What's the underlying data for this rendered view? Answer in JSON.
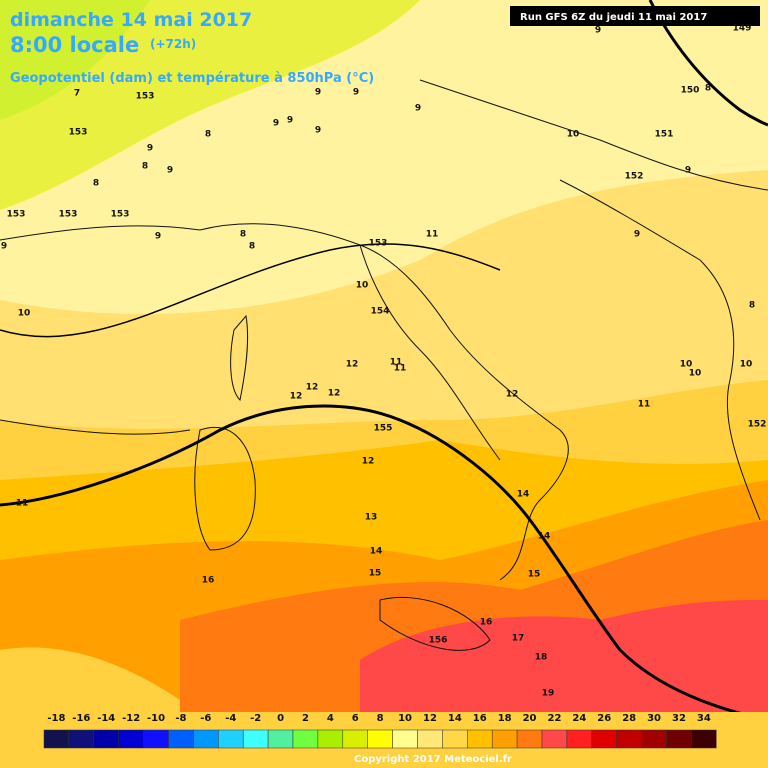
{
  "header": {
    "date": "dimanche 14 mai 2017",
    "time": "8:00 locale",
    "lead": "(+72h)",
    "subtitle": "Geopotentiel (dam) et température à 850hPa (°C)",
    "run": "Run GFS 6Z du jeudi 11 mai 2017"
  },
  "contour_labels": [
    9,
    149,
    150,
    8,
    7,
    153,
    153,
    9,
    8,
    9,
    8,
    153,
    153,
    153,
    9,
    8,
    8,
    9,
    9,
    9,
    9,
    9,
    9,
    8,
    9,
    10,
    151,
    152,
    9,
    9,
    11,
    153,
    10,
    154,
    10,
    8,
    10,
    10,
    10,
    12,
    11,
    11,
    12,
    12,
    12,
    12,
    11,
    152,
    155,
    12,
    11,
    14,
    13,
    14,
    14,
    15,
    15,
    16,
    16,
    17,
    156,
    18,
    19
  ],
  "scale": {
    "values": [
      -18,
      -16,
      -14,
      -12,
      -10,
      -8,
      -6,
      -4,
      -2,
      0,
      2,
      4,
      6,
      8,
      10,
      12,
      14,
      16,
      18,
      20,
      22,
      24,
      26,
      28,
      30,
      32,
      34
    ],
    "colors": [
      "#12124e",
      "#10107a",
      "#0000a8",
      "#0000d0",
      "#1010ff",
      "#0060ff",
      "#0098ff",
      "#20d0ff",
      "#40ffff",
      "#50f0a0",
      "#70ff40",
      "#a8f000",
      "#d8f000",
      "#ffff00",
      "#ffff90",
      "#ffe878",
      "#ffd848",
      "#ffc000",
      "#ffa000",
      "#ff7a10",
      "#ff4848",
      "#ff2020",
      "#e00000",
      "#c00000",
      "#a00000",
      "#700000",
      "#3c0000"
    ]
  },
  "footer": {
    "copyright": "Copyright 2017 Meteociel.fr"
  }
}
